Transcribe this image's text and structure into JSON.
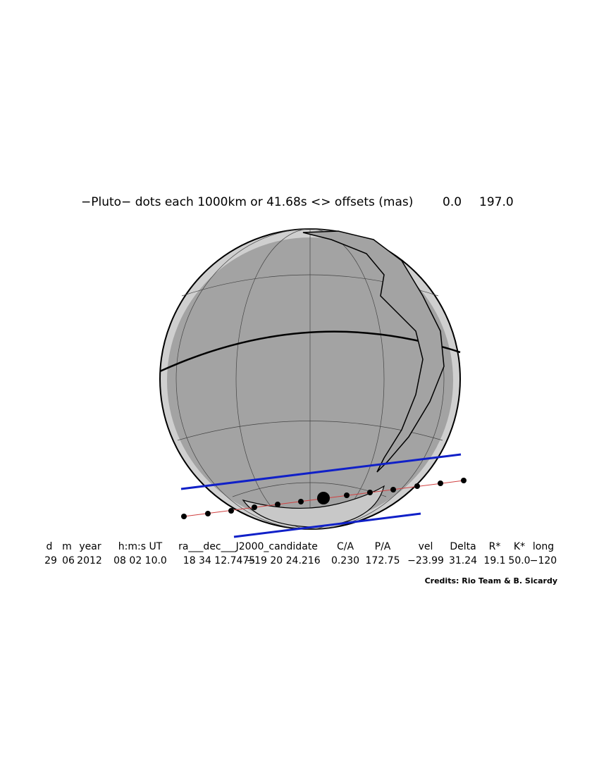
{
  "header": {
    "title": "−Pluto− dots each 1000km or 41.68s <> offsets (mas)",
    "offset_1": "0.0",
    "offset_2": "197.0"
  },
  "table": {
    "headers": [
      "d",
      "m",
      "year",
      "h:m:s UT",
      "ra___dec___J2000_candidate",
      "C/A",
      "P/A",
      "vel",
      "Delta",
      "R*",
      "K*",
      "long"
    ],
    "values": [
      "29",
      "06",
      "2012",
      "08 02 10.0",
      "18 34 12.7475",
      "−19 20 24.216",
      "0.230",
      "172.75",
      "−23.99",
      "31.24",
      "19.1",
      "50.0",
      "−120"
    ]
  },
  "credits": "Credits: Rio Team & B. Sicardy"
}
